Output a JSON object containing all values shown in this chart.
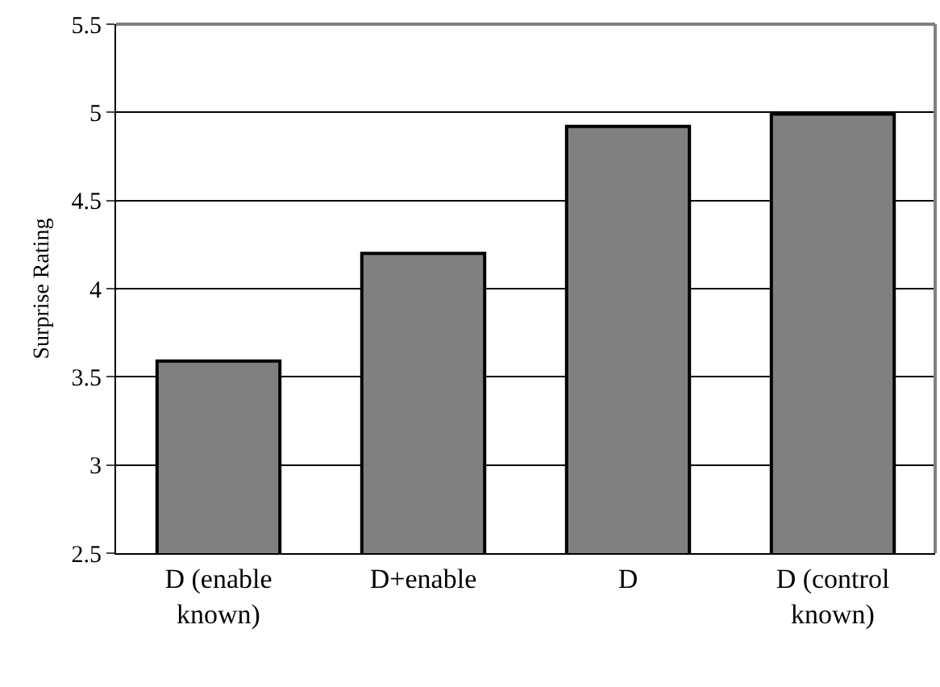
{
  "chart_data": {
    "type": "bar",
    "ylabel": "Surprise Rating",
    "categories": [
      "D (enable known)",
      "D+enable",
      "D",
      "D (control known)"
    ],
    "values": [
      3.59,
      4.2,
      4.92,
      4.99
    ],
    "color": "#808080",
    "ylim": [
      2.5,
      5.5
    ],
    "yticks": [
      2.5,
      3,
      3.5,
      4,
      4.5,
      5,
      5.5
    ],
    "grid": "y"
  }
}
